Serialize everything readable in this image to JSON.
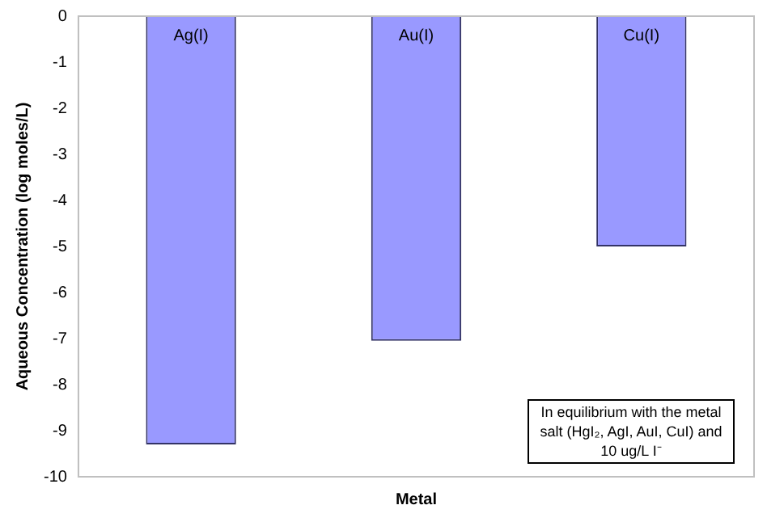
{
  "chart_data": {
    "type": "bar",
    "xlabel": "Metal",
    "ylabel": "Aqueous Concentration (log moles/L)",
    "categories": [
      "Ag(I)",
      "Au(I)",
      "Cu(I)"
    ],
    "values": [
      -9.3,
      -7.05,
      -5.0
    ],
    "color": "#9999ff",
    "ylim": [
      -10,
      0
    ],
    "yticks": [
      -10,
      -9,
      -8,
      -7,
      -6,
      -5,
      -4,
      -3,
      -2,
      -1,
      0
    ],
    "grid": false,
    "legend": false,
    "annotations": [
      "In equilibrium with the metal salt (HgI₂, AgI, AuI, CuI) and 10 ug/L I⁻"
    ]
  }
}
